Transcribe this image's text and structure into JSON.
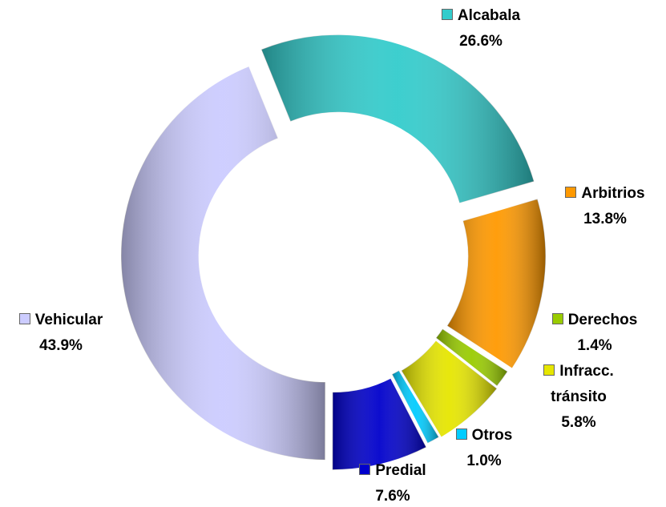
{
  "chart_data": {
    "type": "donut",
    "categories": [
      "Alcabala",
      "Arbitrios",
      "Derechos",
      "Infracc. tránsito",
      "Otros",
      "Predial",
      "Vehicular"
    ],
    "values": [
      26.6,
      13.8,
      1.4,
      5.8,
      1.0,
      7.6,
      43.9
    ],
    "value_labels": [
      "26.6%",
      "13.8%",
      "1.4%",
      "5.8%",
      "1.0%",
      "7.6%",
      "43.9%"
    ],
    "colors": [
      "#33cccc",
      "#ff9900",
      "#99cc00",
      "#e6e600",
      "#00ccff",
      "#0000cc",
      "#ccccff"
    ]
  }
}
